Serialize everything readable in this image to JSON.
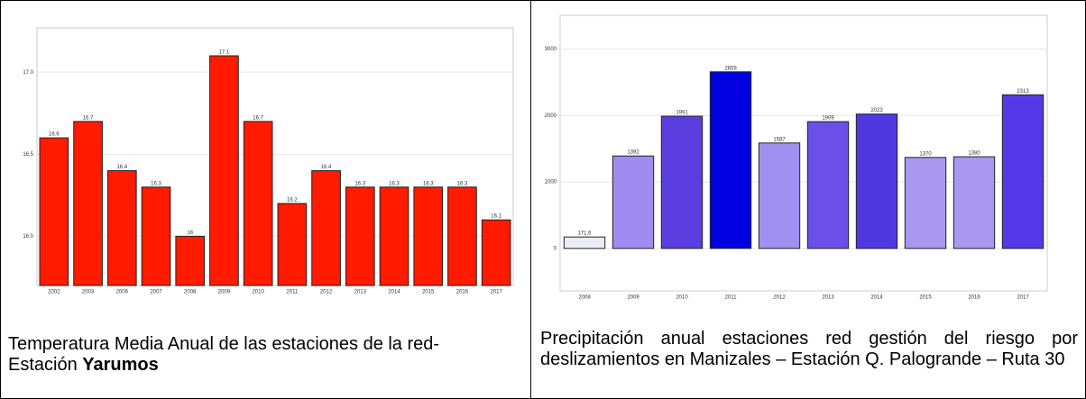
{
  "chart_data": [
    {
      "type": "bar",
      "categories": [
        "2002",
        "2003",
        "2006",
        "2007",
        "2008",
        "2009",
        "2010",
        "2011",
        "2012",
        "2013",
        "2014",
        "2015",
        "2016",
        "2017"
      ],
      "values": [
        16.6,
        16.7,
        16.4,
        16.3,
        16.0,
        17.1,
        16.7,
        16.2,
        16.4,
        16.3,
        16.3,
        16.3,
        16.3,
        16.1
      ],
      "color": "#ff1a00",
      "ylim": [
        15.7,
        17.27
      ],
      "yticks": [
        {
          "value": 16.0,
          "label": "16.0"
        },
        16.5,
        {
          "value": 17.0,
          "label": "17.0"
        }
      ],
      "grid": true
    },
    {
      "type": "bar",
      "categories": [
        "2008",
        "2009",
        "2010",
        "2011",
        "2012",
        "2013",
        "2014",
        "2015",
        "2016",
        "2017"
      ],
      "values": [
        171.6,
        1392,
        1991,
        2659,
        1587,
        1909,
        2023,
        1370,
        1380,
        2313
      ],
      "colors": [
        "#ececf6",
        "#a08cf0",
        "#5a3ee0",
        "#0000e0",
        "#a090f0",
        "#6a50e8",
        "#5038e0",
        "#a898f0",
        "#a898f0",
        "#5538e8"
      ],
      "ylim": [
        -640,
        3510
      ],
      "yticks": [
        0,
        1000,
        2000,
        3000
      ],
      "grid": true
    }
  ],
  "captions": [
    {
      "text": "Temperatura Media Anual de las estaciones de la red- Estación ",
      "bold": "Yarumos"
    },
    {
      "text": "Precipitación anual estaciones red gestión del riesgo por deslizamientos en Manizales – Estación Q. Palogrande – Ruta 30"
    }
  ]
}
